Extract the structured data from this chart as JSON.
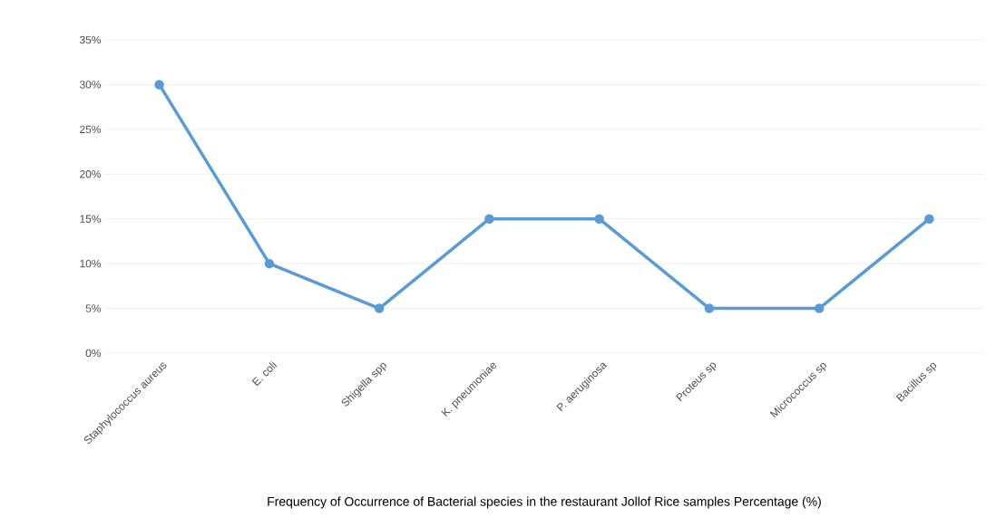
{
  "chart_data": {
    "type": "line",
    "xlabel": "Frequency of Occurrence of Bacterial species in the restaurant Jollof Rice samples Percentage (%)",
    "categories": [
      "Staphylococcus aureus",
      "E. coli",
      "Shigella spp",
      "K. pneumoniae",
      "P. aeruginosa",
      "Proteus sp",
      "Micrococcus sp",
      "Bacillus sp"
    ],
    "values": [
      30,
      10,
      5,
      15,
      15,
      5,
      5,
      15
    ],
    "color": "#5b9bd5",
    "ylim": [
      0,
      35
    ],
    "yticks": [
      {
        "value": 0,
        "label": "0%"
      },
      {
        "value": 5,
        "label": "5%"
      },
      {
        "value": 10,
        "label": "10%"
      },
      {
        "value": 15,
        "label": "15%"
      },
      {
        "value": 20,
        "label": "20%"
      },
      {
        "value": 25,
        "label": "25%"
      },
      {
        "value": 30,
        "label": "30%"
      },
      {
        "value": 35,
        "label": "35%"
      }
    ],
    "grid": "y",
    "marker": "circle"
  }
}
